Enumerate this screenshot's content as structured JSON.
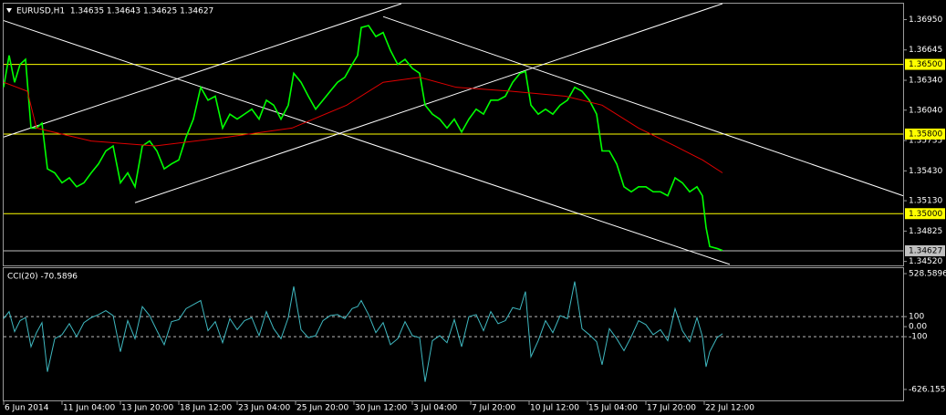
{
  "chart_data": [
    {
      "type": "line",
      "title": "EURUSD,H1  1.34635 1.34643 1.34625 1.34627",
      "xlim": [
        0,
        493
      ],
      "ylim": [
        1.3448,
        1.3711
      ],
      "yticks": [
        {
          "value": 1.3695,
          "label": "1.36950"
        },
        {
          "value": 1.36645,
          "label": "1.36645"
        },
        {
          "value": 1.3634,
          "label": "1.36340"
        },
        {
          "value": 1.3604,
          "label": "1.36040"
        },
        {
          "value": 1.35735,
          "label": "1.35735"
        },
        {
          "value": 1.3543,
          "label": "1.35430"
        },
        {
          "value": 1.3513,
          "label": "1.35130"
        },
        {
          "value": 1.34825,
          "label": "1.34825"
        },
        {
          "value": 1.3452,
          "label": "1.34520"
        }
      ],
      "x": [
        0,
        3,
        6,
        9,
        12,
        15,
        18,
        21,
        24,
        28,
        32,
        36,
        40,
        44,
        48,
        52,
        56,
        60,
        64,
        68,
        72,
        76,
        80,
        84,
        88,
        92,
        96,
        100,
        104,
        108,
        112,
        116,
        120,
        124,
        128,
        132,
        136,
        140,
        144,
        148,
        152,
        156,
        159,
        163,
        167,
        171,
        175,
        179,
        183,
        187,
        191,
        194,
        196,
        200,
        204,
        208,
        212,
        216,
        220,
        224,
        228,
        231,
        235,
        239,
        243,
        247,
        251,
        255,
        259,
        263,
        267,
        271,
        275,
        279,
        283,
        286,
        289,
        293,
        297,
        301,
        305,
        309,
        313,
        317,
        321,
        325,
        328,
        332,
        336,
        340,
        344,
        348,
        352,
        356,
        360,
        364,
        368,
        372,
        376,
        380,
        383,
        385,
        387,
        391,
        394
      ],
      "series": [
        {
          "color": "#00ff00",
          "values": [
            1.3627,
            1.3659,
            1.3632,
            1.365,
            1.3655,
            1.3586,
            1.3586,
            1.3591,
            1.3545,
            1.3541,
            1.3531,
            1.3536,
            1.3527,
            1.3531,
            1.3541,
            1.355,
            1.3563,
            1.3568,
            1.3531,
            1.3541,
            1.3527,
            1.3568,
            1.3573,
            1.3563,
            1.3545,
            1.355,
            1.3554,
            1.3577,
            1.3595,
            1.3627,
            1.3614,
            1.3618,
            1.3586,
            1.36,
            1.3595,
            1.36,
            1.3605,
            1.3595,
            1.3614,
            1.3609,
            1.3595,
            1.3609,
            1.3641,
            1.3632,
            1.3618,
            1.3605,
            1.3614,
            1.3623,
            1.3632,
            1.3637,
            1.365,
            1.3659,
            1.3687,
            1.3689,
            1.3678,
            1.3682,
            1.3664,
            1.365,
            1.3655,
            1.3646,
            1.3641,
            1.3609,
            1.36,
            1.3595,
            1.3586,
            1.3595,
            1.3582,
            1.3595,
            1.3605,
            1.36,
            1.3614,
            1.3614,
            1.3618,
            1.3632,
            1.3641,
            1.3643,
            1.3609,
            1.36,
            1.3605,
            1.36,
            1.3609,
            1.3614,
            1.3627,
            1.3623,
            1.3614,
            1.36,
            1.3563,
            1.3563,
            1.355,
            1.3527,
            1.3522,
            1.3527,
            1.3527,
            1.3522,
            1.3522,
            1.3518,
            1.3536,
            1.3531,
            1.3522,
            1.3527,
            1.3518,
            1.3486,
            1.3467,
            1.3465,
            1.3463
          ]
        },
        {
          "color": "#e00000",
          "x": [
            0,
            13,
            18,
            48,
            83,
            123,
            158,
            188,
            208,
            228,
            248,
            278,
            308,
            328,
            348,
            368,
            383,
            394
          ],
          "values": [
            1.3632,
            1.3623,
            1.3586,
            1.3573,
            1.3568,
            1.3577,
            1.3586,
            1.3609,
            1.3632,
            1.3637,
            1.3627,
            1.3623,
            1.3618,
            1.3609,
            1.3586,
            1.3568,
            1.3554,
            1.3541
          ]
        }
      ],
      "trendline_color": "#ffffff",
      "trendlines": [
        {
          "x": [
            0,
            398
          ],
          "values": [
            1.3694,
            1.3449
          ]
        },
        {
          "x": [
            208,
            493
          ],
          "values": [
            1.3698,
            1.3518
          ]
        },
        {
          "x": [
            0,
            218
          ],
          "values": [
            1.3577,
            1.3711
          ]
        },
        {
          "x": [
            72,
            394
          ],
          "values": [
            1.3511,
            1.3711
          ]
        }
      ],
      "levels": [
        {
          "value": 1.365,
          "label": "1.36500",
          "color": "#ffff00"
        },
        {
          "value": 1.358,
          "label": "1.35800",
          "color": "#ffff00"
        },
        {
          "value": 1.35,
          "label": "1.35000",
          "color": "#ffff00"
        },
        {
          "value": 1.34627,
          "label": "1.34627",
          "color": "#c0c0c0"
        }
      ]
    },
    {
      "type": "line",
      "title": "CCI(20) -70.5896",
      "ylim": [
        -626.155,
        528.5896
      ],
      "yticks": [
        528.5896,
        100,
        {
          "value": 0,
          "label": "0.00"
        },
        -100,
        -626.155
      ],
      "levels": [
        100,
        -100
      ],
      "level_style": "dashed",
      "xticks": [
        {
          "value": 0,
          "label": "6 Jun 2014"
        },
        {
          "value": 32,
          "label": "11 Jun 04:00"
        },
        {
          "value": 64,
          "label": "13 Jun 20:00"
        },
        {
          "value": 96,
          "label": "18 Jun 12:00"
        },
        {
          "value": 128,
          "label": "23 Jun 04:00"
        },
        {
          "value": 160,
          "label": "25 Jun 20:00"
        },
        {
          "value": 192,
          "label": "30 Jun 12:00"
        },
        {
          "value": 224,
          "label": "3 Jul 04:00"
        },
        {
          "value": 256,
          "label": "7 Jul 20:00"
        },
        {
          "value": 288,
          "label": "10 Jul 12:00"
        },
        {
          "value": 320,
          "label": "15 Jul 04:00"
        },
        {
          "value": 352,
          "label": "17 Jul 20:00"
        },
        {
          "value": 384,
          "label": "22 Jul 12:00"
        }
      ],
      "series": [
        {
          "color": "#3fb8c0",
          "values": [
            80,
            150,
            -50,
            60,
            90,
            -200,
            -60,
            40,
            -450,
            -120,
            -80,
            30,
            -100,
            40,
            90,
            120,
            160,
            110,
            -250,
            60,
            -120,
            200,
            110,
            -40,
            -180,
            50,
            70,
            180,
            220,
            260,
            -40,
            50,
            -160,
            80,
            -30,
            60,
            90,
            -90,
            150,
            -20,
            -120,
            90,
            400,
            -30,
            -110,
            -90,
            60,
            110,
            120,
            80,
            180,
            200,
            260,
            120,
            -60,
            40,
            -180,
            -120,
            50,
            -90,
            -110,
            -550,
            -140,
            -90,
            -160,
            70,
            -200,
            100,
            120,
            -40,
            150,
            30,
            60,
            190,
            170,
            350,
            -300,
            -140,
            60,
            -60,
            110,
            80,
            450,
            -20,
            -80,
            -150,
            -380,
            -20,
            -120,
            -240,
            -100,
            60,
            20,
            -80,
            -30,
            -140,
            180,
            -40,
            -150,
            90,
            -100,
            -400,
            -250,
            -110,
            -70.5896
          ]
        }
      ]
    }
  ]
}
